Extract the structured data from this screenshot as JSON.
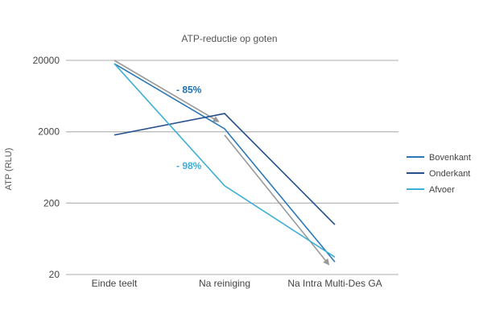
{
  "chart_data": {
    "type": "line",
    "title": "ATP-reductie op goten",
    "xlabel": "",
    "ylabel": "ATP (RLU)",
    "y_scale": "log",
    "ylim": [
      20,
      20000
    ],
    "y_ticks": [
      "20000",
      "2000",
      "200",
      "20"
    ],
    "y_tick_values": [
      20000,
      2000,
      200,
      20
    ],
    "categories": [
      "Einde teelt",
      "Na reiniging",
      "Na Intra Multi-Des GA"
    ],
    "series": [
      {
        "name": "Bovenkant",
        "color": "#2a78b8",
        "values": [
          18000,
          2200,
          30
        ]
      },
      {
        "name": "Onderkant",
        "color": "#244f8c",
        "values": [
          1800,
          3600,
          100
        ]
      },
      {
        "name": "Afvoer",
        "color": "#3eaed6",
        "values": [
          18000,
          350,
          35
        ]
      }
    ],
    "arrows": [
      {
        "color": "#999999",
        "from": [
          "Einde teelt",
          20000
        ],
        "to": [
          "Na reiniging",
          2800
        ]
      },
      {
        "color": "#999999",
        "from": [
          "Na reiniging",
          1800
        ],
        "to": [
          "Na Intra Multi-Des GA",
          28
        ]
      }
    ],
    "annotations": [
      {
        "text": "- 85%",
        "color": "#1f6fb0",
        "x": "Na reiniging",
        "y": 7000
      },
      {
        "text": "- 98%",
        "color": "#3eaed6",
        "x": "Na reiniging",
        "y": 600
      }
    ],
    "grid": true,
    "legend_position": "right"
  }
}
